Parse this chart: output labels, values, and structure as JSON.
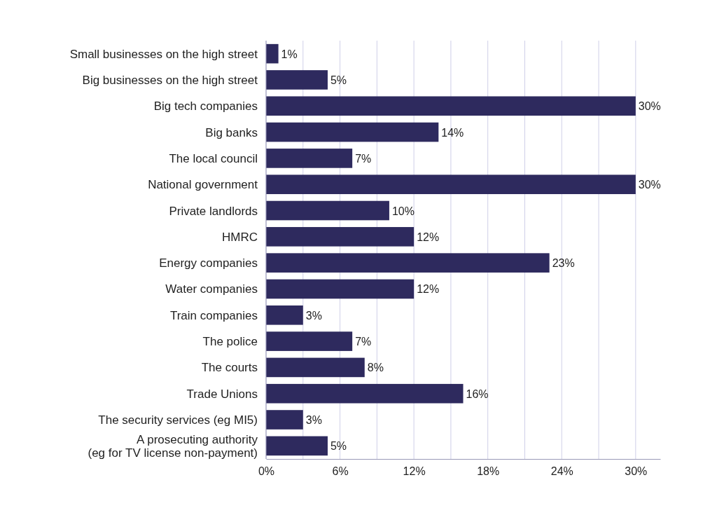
{
  "chart_data": {
    "type": "bar",
    "orientation": "horizontal",
    "categories": [
      "Small businesses on the high street",
      "Big businesses on the high street",
      "Big tech companies",
      "Big banks",
      "The local council",
      "National government",
      "Private landlords",
      "HMRC",
      "Energy companies",
      "Water companies",
      "Train companies",
      "The police",
      "The courts",
      "Trade Unions",
      "The security services (eg MI5)",
      "A prosecuting authority\n(eg for TV license non-payment)"
    ],
    "values": [
      1,
      5,
      30,
      14,
      7,
      30,
      10,
      12,
      23,
      12,
      3,
      7,
      8,
      16,
      3,
      5
    ],
    "color": "#2e2a5e",
    "xlim": [
      0,
      32
    ],
    "xticks": [
      {
        "value": 0,
        "label": "0%"
      },
      {
        "value": 3,
        "label": null
      },
      {
        "value": 6,
        "label": "6%"
      },
      {
        "value": 9,
        "label": null
      },
      {
        "value": 12,
        "label": "12%"
      },
      {
        "value": 15,
        "label": null
      },
      {
        "value": 18,
        "label": "18%"
      },
      {
        "value": 21,
        "label": null
      },
      {
        "value": 24,
        "label": "24%"
      },
      {
        "value": 27,
        "label": null
      },
      {
        "value": 30,
        "label": "30%"
      }
    ],
    "value_labels": [
      "1%",
      "5%",
      "30%",
      "14%",
      "7%",
      "30%",
      "10%",
      "12%",
      "23%",
      "12%",
      "3%",
      "7%",
      "8%",
      "16%",
      "3%",
      "5%"
    ],
    "grid": "x"
  }
}
